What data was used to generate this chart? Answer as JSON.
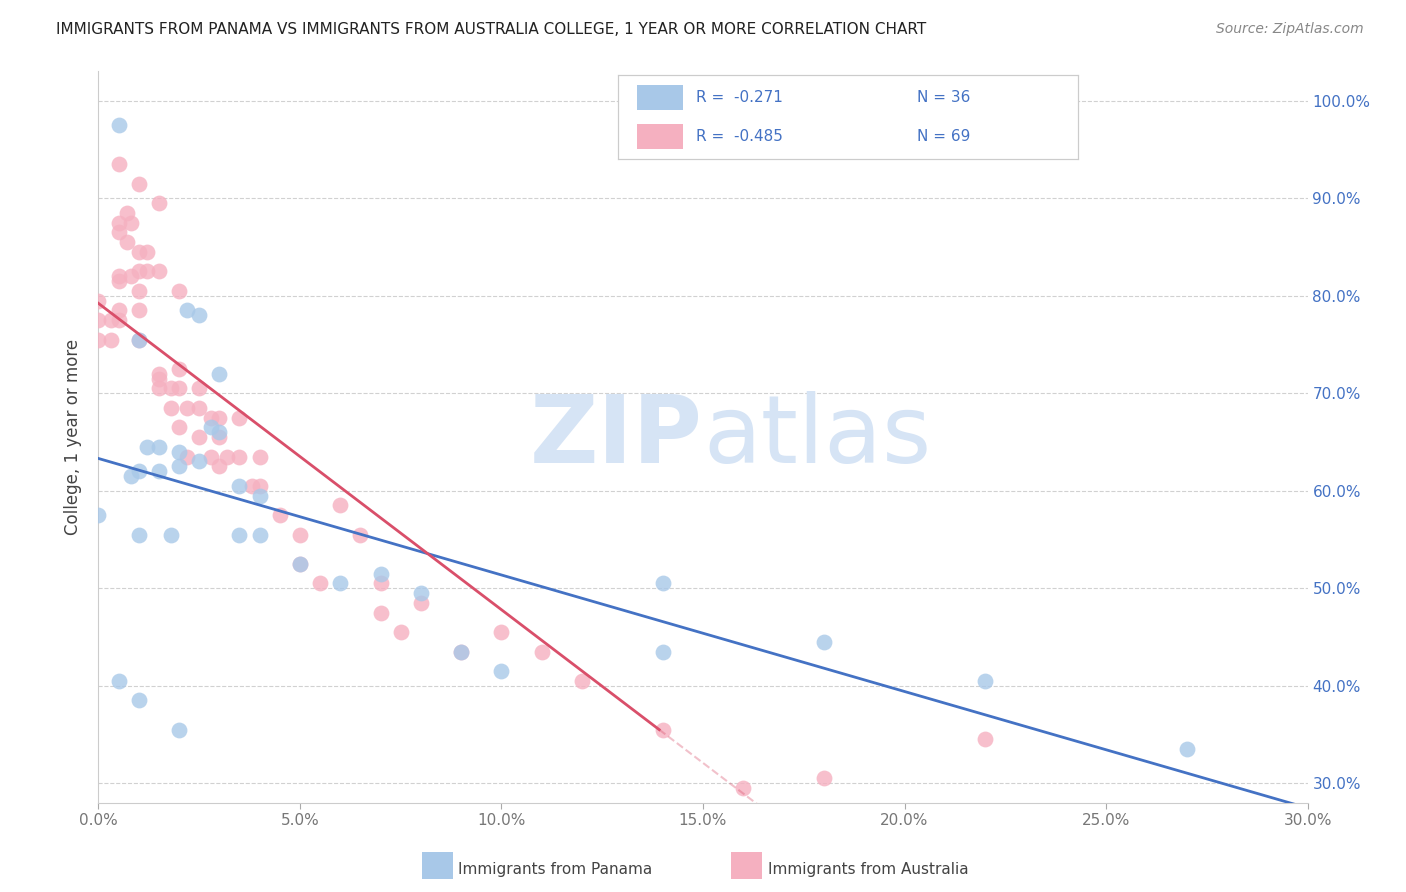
{
  "title": "IMMIGRANTS FROM PANAMA VS IMMIGRANTS FROM AUSTRALIA COLLEGE, 1 YEAR OR MORE CORRELATION CHART",
  "source": "Source: ZipAtlas.com",
  "ylabel": "College, 1 year or more",
  "legend_label_panama": "Immigrants from Panama",
  "legend_label_australia": "Immigrants from Australia",
  "R_panama": "-0.271",
  "N_panama": "36",
  "R_australia": "-0.485",
  "N_australia": "69",
  "color_panama": "#a8c8e8",
  "color_australia": "#f5b0c0",
  "line_color_panama": "#4472c4",
  "line_color_australia": "#d94f6a",
  "watermark_color": "#d6e4f5",
  "grid_color": "#cccccc",
  "xmin": 0.0,
  "xmax": 0.3,
  "ymin": 0.28,
  "ymax": 1.03,
  "yticks": [
    0.3,
    0.4,
    0.5,
    0.6,
    0.7,
    0.8,
    0.9,
    1.0
  ],
  "xticks": [
    0.0,
    0.05,
    0.1,
    0.15,
    0.2,
    0.25,
    0.3
  ],
  "panama_x": [
    0.0,
    0.005,
    0.008,
    0.01,
    0.01,
    0.01,
    0.012,
    0.015,
    0.015,
    0.018,
    0.02,
    0.02,
    0.022,
    0.025,
    0.025,
    0.028,
    0.03,
    0.03,
    0.035,
    0.035,
    0.04,
    0.04,
    0.05,
    0.06,
    0.08,
    0.09,
    0.1,
    0.14,
    0.14,
    0.18,
    0.22,
    0.27,
    0.005,
    0.01,
    0.02,
    0.07
  ],
  "panama_y": [
    0.575,
    0.975,
    0.615,
    0.755,
    0.62,
    0.555,
    0.645,
    0.645,
    0.62,
    0.555,
    0.64,
    0.625,
    0.785,
    0.78,
    0.63,
    0.665,
    0.72,
    0.66,
    0.605,
    0.555,
    0.595,
    0.555,
    0.525,
    0.505,
    0.495,
    0.435,
    0.415,
    0.505,
    0.435,
    0.445,
    0.405,
    0.335,
    0.405,
    0.385,
    0.355,
    0.515
  ],
  "australia_x": [
    0.0,
    0.0,
    0.0,
    0.003,
    0.003,
    0.005,
    0.005,
    0.005,
    0.005,
    0.005,
    0.005,
    0.007,
    0.007,
    0.008,
    0.008,
    0.01,
    0.01,
    0.01,
    0.01,
    0.01,
    0.012,
    0.012,
    0.015,
    0.015,
    0.015,
    0.015,
    0.018,
    0.018,
    0.02,
    0.02,
    0.02,
    0.02,
    0.022,
    0.022,
    0.025,
    0.025,
    0.025,
    0.028,
    0.028,
    0.03,
    0.03,
    0.03,
    0.032,
    0.035,
    0.035,
    0.038,
    0.04,
    0.04,
    0.045,
    0.05,
    0.05,
    0.055,
    0.06,
    0.065,
    0.07,
    0.07,
    0.075,
    0.08,
    0.09,
    0.1,
    0.11,
    0.12,
    0.14,
    0.16,
    0.18,
    0.22,
    0.005,
    0.01,
    0.015
  ],
  "australia_y": [
    0.755,
    0.775,
    0.795,
    0.755,
    0.775,
    0.775,
    0.785,
    0.815,
    0.82,
    0.865,
    0.875,
    0.855,
    0.885,
    0.82,
    0.875,
    0.755,
    0.785,
    0.805,
    0.825,
    0.845,
    0.825,
    0.845,
    0.825,
    0.705,
    0.715,
    0.72,
    0.685,
    0.705,
    0.805,
    0.725,
    0.705,
    0.665,
    0.635,
    0.685,
    0.685,
    0.705,
    0.655,
    0.675,
    0.635,
    0.675,
    0.655,
    0.625,
    0.635,
    0.675,
    0.635,
    0.605,
    0.635,
    0.605,
    0.575,
    0.555,
    0.525,
    0.505,
    0.585,
    0.555,
    0.505,
    0.475,
    0.455,
    0.485,
    0.435,
    0.455,
    0.435,
    0.405,
    0.355,
    0.295,
    0.305,
    0.345,
    0.935,
    0.915,
    0.895
  ]
}
